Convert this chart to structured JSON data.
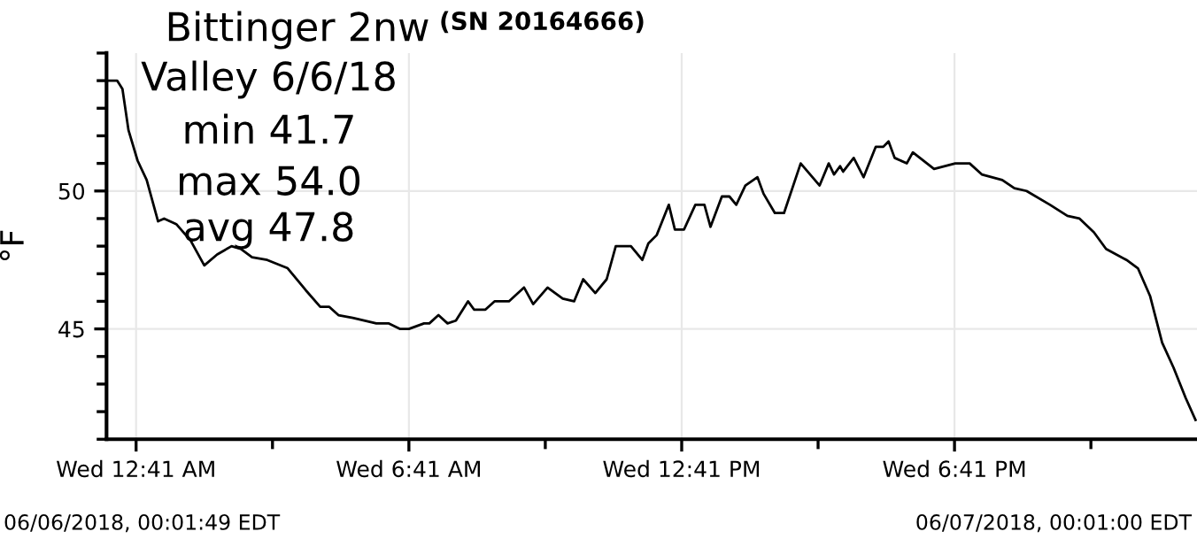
{
  "chart_data": {
    "type": "line",
    "title": "Bittinger 2nw",
    "subtitle": "(SN 20164666)",
    "ylabel": "°F",
    "annotations": [
      "Valley 6/6/18",
      "min 41.7",
      "max 54.0",
      "avg 47.8",
      "06/06/2018, 00:01:49 EDT",
      "06/07/2018, 00:01:00 EDT"
    ],
    "xlim": [
      "2018-06-06T00:02",
      "2018-06-07T00:01"
    ],
    "ylim": [
      41,
      55
    ],
    "xticks": [
      {
        "value": "2018-06-06T00:41",
        "label": "Wed 12:41 AM"
      },
      {
        "value": "2018-06-06T03:41",
        "label": null
      },
      {
        "value": "2018-06-06T06:41",
        "label": "Wed 6:41 AM"
      },
      {
        "value": "2018-06-06T09:41",
        "label": null
      },
      {
        "value": "2018-06-06T12:41",
        "label": "Wed 12:41 PM"
      },
      {
        "value": "2018-06-06T15:41",
        "label": null
      },
      {
        "value": "2018-06-06T18:41",
        "label": "Wed 6:41 PM"
      },
      {
        "value": "2018-06-06T21:41",
        "label": null
      }
    ],
    "yticks": [
      {
        "value": 41,
        "label": null
      },
      {
        "value": 42,
        "label": null
      },
      {
        "value": 43,
        "label": null
      },
      {
        "value": 44,
        "label": null
      },
      45,
      {
        "value": 46,
        "label": null
      },
      {
        "value": 47,
        "label": null
      },
      {
        "value": 48,
        "label": null
      },
      {
        "value": 49,
        "label": null
      },
      50,
      {
        "value": 51,
        "label": null
      },
      {
        "value": 52,
        "label": null
      },
      {
        "value": 53,
        "label": null
      },
      {
        "value": 54,
        "label": null
      },
      {
        "value": 55,
        "label": null
      }
    ],
    "grid": true,
    "marker": "none",
    "line_style": "solid",
    "x": [
      "2018-06-06T00:02",
      "2018-06-06T00:16",
      "2018-06-06T00:23",
      "2018-06-06T00:31",
      "2018-06-06T00:43",
      "2018-06-06T00:55",
      "2018-06-06T01:10",
      "2018-06-06T01:18",
      "2018-06-06T01:34",
      "2018-06-06T01:53",
      "2018-06-06T02:11",
      "2018-06-06T02:28",
      "2018-06-06T02:47",
      "2018-06-06T02:59",
      "2018-06-06T03:14",
      "2018-06-06T03:34",
      "2018-06-06T04:01",
      "2018-06-06T04:25",
      "2018-06-06T04:44",
      "2018-06-06T04:56",
      "2018-06-06T05:08",
      "2018-06-06T05:27",
      "2018-06-06T05:58",
      "2018-06-06T06:14",
      "2018-06-06T06:29",
      "2018-06-06T06:41",
      "2018-06-06T07:01",
      "2018-06-06T07:08",
      "2018-06-06T07:20",
      "2018-06-06T07:32",
      "2018-06-06T07:43",
      "2018-06-06T07:59",
      "2018-06-06T08:07",
      "2018-06-06T08:22",
      "2018-06-06T08:34",
      "2018-06-06T08:53",
      "2018-06-06T09:13",
      "2018-06-06T09:25",
      "2018-06-06T09:44",
      "2018-06-06T10:04",
      "2018-06-06T10:19",
      "2018-06-06T10:31",
      "2018-06-06T10:47",
      "2018-06-06T11:02",
      "2018-06-06T11:14",
      "2018-06-06T11:34",
      "2018-06-06T11:49",
      "2018-06-06T11:57",
      "2018-06-06T12:08",
      "2018-06-06T12:24",
      "2018-06-06T12:32",
      "2018-06-06T12:44",
      "2018-06-06T12:59",
      "2018-06-06T13:11",
      "2018-06-06T13:19",
      "2018-06-06T13:34",
      "2018-06-06T13:44",
      "2018-06-06T13:53",
      "2018-06-06T14:05",
      "2018-06-06T14:21",
      "2018-06-06T14:29",
      "2018-06-06T14:44",
      "2018-06-06T14:56",
      "2018-06-06T15:18",
      "2018-06-06T15:43",
      "2018-06-06T15:55",
      "2018-06-06T16:02",
      "2018-06-06T16:10",
      "2018-06-06T16:14",
      "2018-06-06T16:28",
      "2018-06-06T16:41",
      "2018-06-06T16:57",
      "2018-06-06T17:07",
      "2018-06-06T17:14",
      "2018-06-06T17:22",
      "2018-06-06T17:38",
      "2018-06-06T17:46",
      "2018-06-06T18:14",
      "2018-06-06T18:42",
      "2018-06-06T19:01",
      "2018-06-06T19:17",
      "2018-06-06T19:44",
      "2018-06-06T20:00",
      "2018-06-06T20:16",
      "2018-06-06T20:47",
      "2018-06-06T21:10",
      "2018-06-06T21:26",
      "2018-06-06T21:45",
      "2018-06-06T22:01",
      "2018-06-06T22:28",
      "2018-06-06T22:43",
      "2018-06-06T22:59",
      "2018-06-06T23:15",
      "2018-06-06T23:30",
      "2018-06-06T23:46",
      "2018-06-06T23:59"
    ],
    "series": [
      {
        "color": "#000000",
        "values": [
          54.0,
          54.0,
          53.7,
          52.2,
          51.1,
          50.4,
          48.9,
          49.0,
          48.8,
          48.2,
          47.3,
          47.7,
          48.0,
          47.9,
          47.6,
          47.5,
          47.2,
          46.4,
          45.8,
          45.8,
          45.5,
          45.4,
          45.2,
          45.2,
          45.0,
          45.0,
          45.2,
          45.2,
          45.5,
          45.2,
          45.3,
          46.0,
          45.7,
          45.7,
          46.0,
          46.0,
          46.5,
          45.9,
          46.5,
          46.1,
          46.0,
          46.8,
          46.3,
          46.8,
          48.0,
          48.0,
          47.5,
          48.1,
          48.4,
          49.5,
          48.6,
          48.6,
          49.5,
          49.5,
          48.7,
          49.8,
          49.8,
          49.5,
          50.2,
          50.5,
          49.9,
          49.2,
          49.2,
          51.0,
          50.2,
          51.0,
          50.6,
          50.9,
          50.7,
          51.2,
          50.5,
          51.6,
          51.6,
          51.8,
          51.2,
          51.0,
          51.4,
          50.8,
          51.0,
          51.0,
          50.6,
          50.4,
          50.1,
          50.0,
          49.5,
          49.1,
          49.0,
          48.5,
          47.9,
          47.5,
          47.2,
          46.2,
          44.5,
          43.6,
          42.5,
          41.7
        ]
      }
    ]
  }
}
